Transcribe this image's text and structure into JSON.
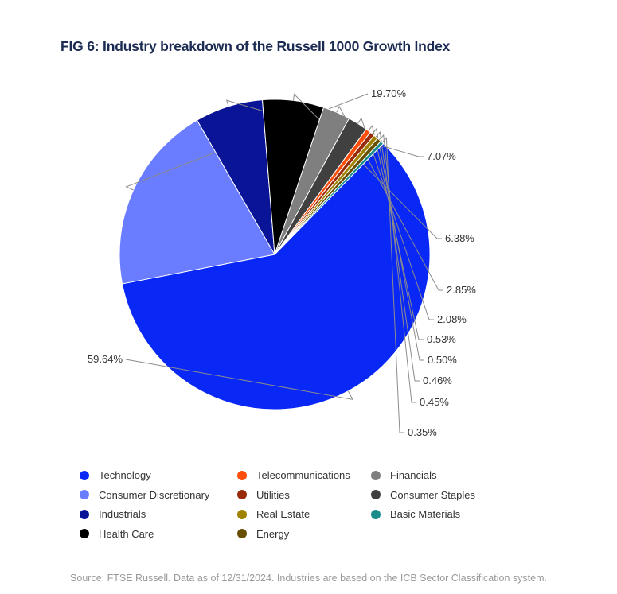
{
  "title": "FIG 6: Industry breakdown of the Russell 1000 Growth Index",
  "source": "Source: FTSE Russell. Data as of 12/31/2024. Industries are based on the ICB Sector Classification system.",
  "chart_data": {
    "type": "pie",
    "title": "FIG 6: Industry breakdown of the Russell 1000 Growth Index",
    "legend_position": "bottom",
    "slices": [
      {
        "name": "Technology",
        "value": 59.64,
        "label": "59.64%",
        "color": "#0a28f5"
      },
      {
        "name": "Consumer Discretionary",
        "value": 19.7,
        "label": "19.70%",
        "color": "#6a7cff"
      },
      {
        "name": "Industrials",
        "value": 7.07,
        "label": "7.07%",
        "color": "#0a1496"
      },
      {
        "name": "Health Care",
        "value": 6.38,
        "label": "6.38%",
        "color": "#000000"
      },
      {
        "name": "Financials",
        "value": 2.85,
        "label": "2.85%",
        "color": "#7f7f7f"
      },
      {
        "name": "Consumer Staples",
        "value": 2.08,
        "label": "2.08%",
        "color": "#404040"
      },
      {
        "name": "Telecommunications",
        "value": 0.53,
        "label": "0.53%",
        "color": "#ff4f0a"
      },
      {
        "name": "Utilities",
        "value": 0.5,
        "label": "0.50%",
        "color": "#992a0a"
      },
      {
        "name": "Real Estate",
        "value": 0.46,
        "label": "0.46%",
        "color": "#a08200"
      },
      {
        "name": "Energy",
        "value": 0.45,
        "label": "0.45%",
        "color": "#665000"
      },
      {
        "name": "Basic Materials",
        "value": 0.35,
        "label": "0.35%",
        "color": "#1a8c8c"
      }
    ]
  }
}
